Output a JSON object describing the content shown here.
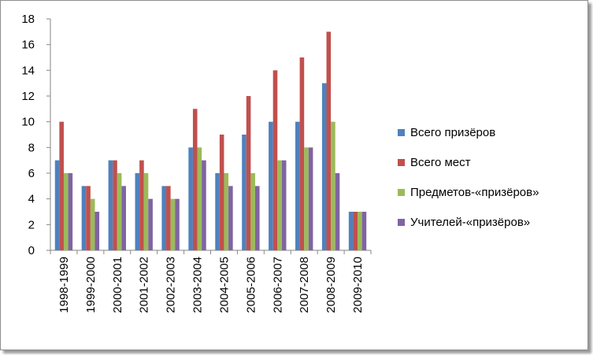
{
  "chart_data": {
    "type": "bar",
    "categories": [
      "1998-1999",
      "1999-2000",
      "2000-2001",
      "2001-2002",
      "2002-2003",
      "2003-2004",
      "2004-2005",
      "2005-2006",
      "2006-2007",
      "2007-2008",
      "2008-2009",
      "2009-2010"
    ],
    "series": [
      {
        "name": "Всего призёров",
        "color": "#4f81bd",
        "values": [
          7,
          5,
          7,
          6,
          5,
          8,
          6,
          9,
          10,
          10,
          13,
          3
        ]
      },
      {
        "name": "Всего мест",
        "color": "#c0504d",
        "values": [
          10,
          5,
          7,
          7,
          5,
          11,
          9,
          12,
          14,
          15,
          17,
          3
        ]
      },
      {
        "name": "Предметов-«призёров»",
        "color": "#9bbb59",
        "values": [
          6,
          4,
          6,
          6,
          4,
          8,
          6,
          6,
          7,
          8,
          10,
          3
        ]
      },
      {
        "name": "Учителей-«призёров»",
        "color": "#8064a2",
        "values": [
          6,
          3,
          5,
          4,
          4,
          7,
          5,
          5,
          7,
          8,
          6,
          3
        ]
      }
    ],
    "ylim": [
      0,
      18
    ],
    "yticks": [
      0,
      2,
      4,
      6,
      8,
      10,
      12,
      14,
      16,
      18
    ],
    "grid": false,
    "legend_position": "right",
    "title": "",
    "xlabel": "",
    "ylabel": ""
  }
}
